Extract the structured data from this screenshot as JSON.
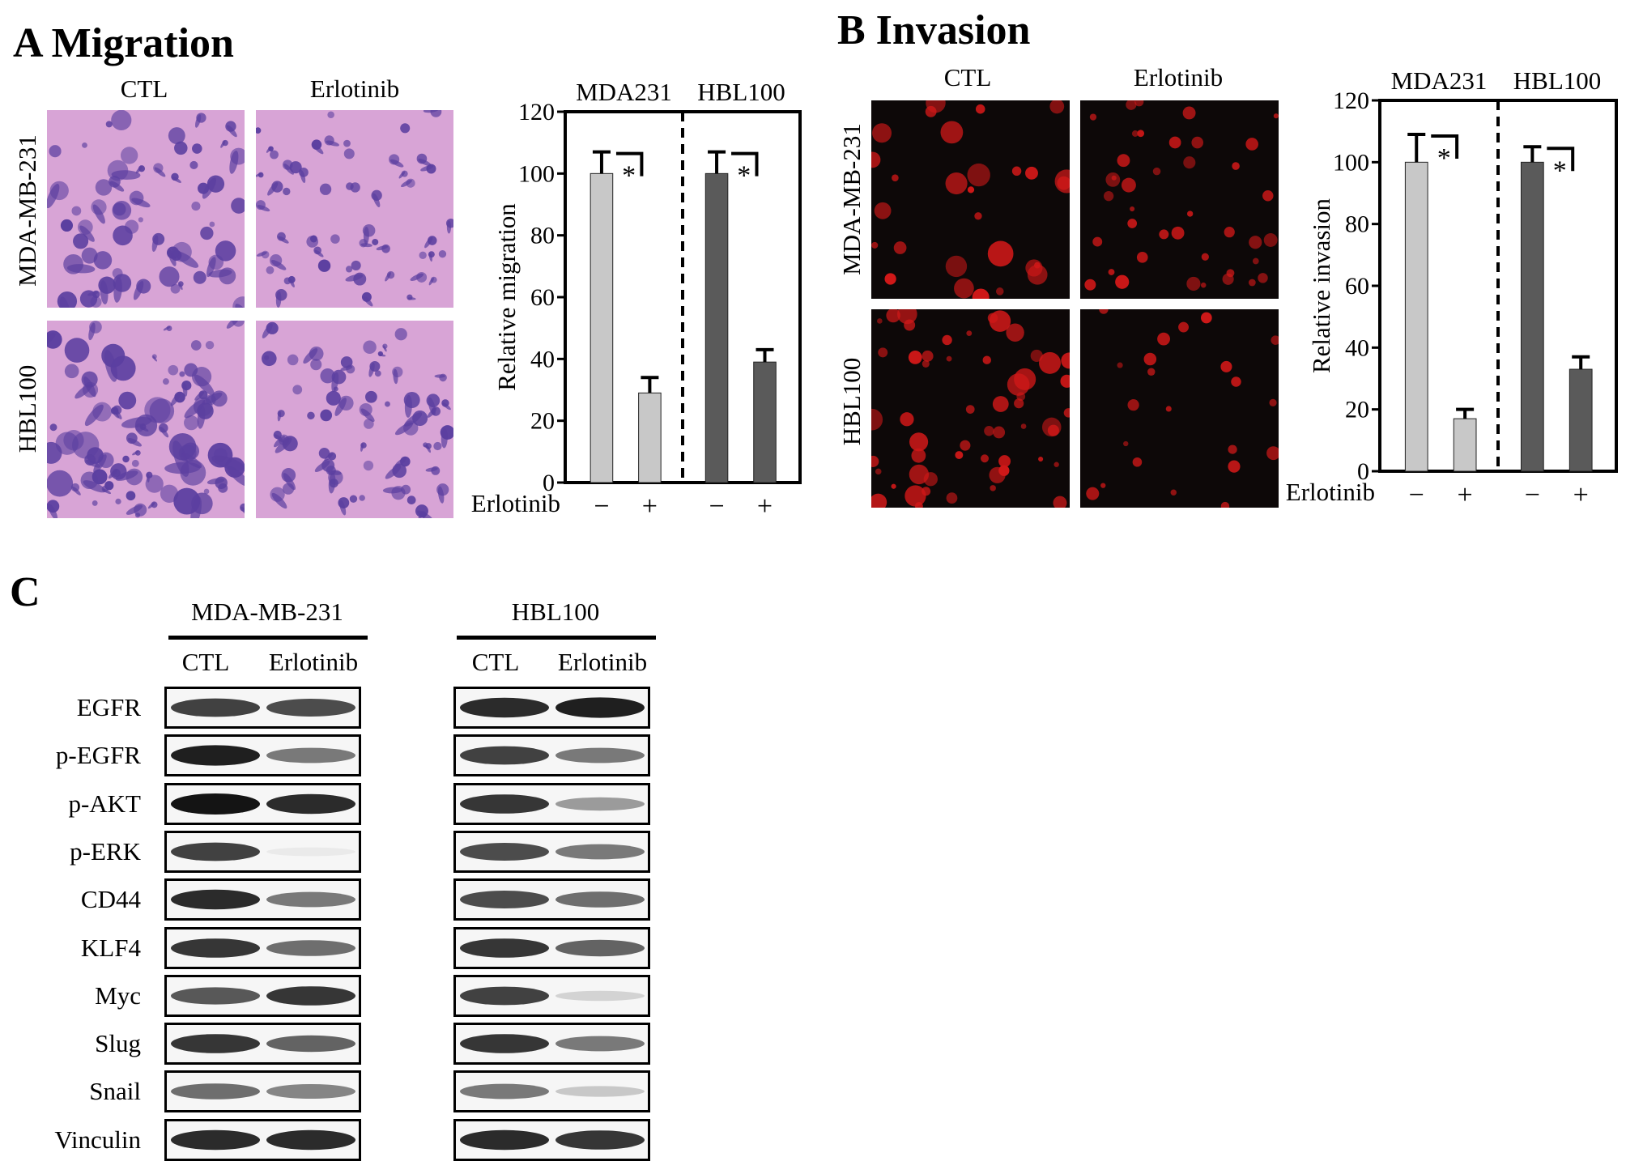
{
  "panelA": {
    "label": "A Migration",
    "col_labels": [
      "CTL",
      "Erlotinib"
    ],
    "row_labels": [
      "MDA-MB-231",
      "HBL100"
    ],
    "stain_colors": {
      "background": "#d8a4d6",
      "cell": "#5b3fa0"
    }
  },
  "panelB": {
    "label": "B Invasion",
    "col_labels": [
      "CTL",
      "Erlotinib"
    ],
    "row_labels": [
      "MDA-MB-231",
      "HBL100"
    ],
    "stain_colors": {
      "background": "#0d0808",
      "cell": "#d01818"
    }
  },
  "panelC": {
    "label": "C",
    "groups": [
      {
        "name": "MDA-MB-231",
        "cols": [
          "CTL",
          "Erlotinib"
        ]
      },
      {
        "name": "HBL100",
        "cols": [
          "CTL",
          "Erlotinib"
        ]
      }
    ],
    "rows": [
      "EGFR",
      "p-EGFR",
      "p-AKT",
      "p-ERK",
      "CD44",
      "KLF4",
      "Myc",
      "Slug",
      "Snail",
      "Vinculin"
    ],
    "band_intensity_mda": [
      [
        0.8,
        0.75
      ],
      [
        0.95,
        0.55
      ],
      [
        1.0,
        0.9
      ],
      [
        0.8,
        0.05
      ],
      [
        0.9,
        0.55
      ],
      [
        0.85,
        0.6
      ],
      [
        0.7,
        0.85
      ],
      [
        0.85,
        0.65
      ],
      [
        0.6,
        0.5
      ],
      [
        0.9,
        0.9
      ]
    ],
    "band_intensity_hbl": [
      [
        0.9,
        0.95
      ],
      [
        0.8,
        0.55
      ],
      [
        0.85,
        0.4
      ],
      [
        0.75,
        0.55
      ],
      [
        0.75,
        0.6
      ],
      [
        0.85,
        0.65
      ],
      [
        0.8,
        0.15
      ],
      [
        0.85,
        0.55
      ],
      [
        0.55,
        0.2
      ],
      [
        0.9,
        0.85
      ]
    ]
  },
  "chart_data": [
    {
      "type": "bar",
      "title": "",
      "group_labels": [
        "MDA231",
        "HBL100"
      ],
      "xlabel": "Erlotinib",
      "x_tick_labels": [
        "−",
        "+",
        "−",
        "+"
      ],
      "ylabel": "Relative migration",
      "ylim": [
        0,
        120
      ],
      "yticks": [
        0,
        20,
        40,
        60,
        80,
        100,
        120
      ],
      "values": [
        100,
        29,
        100,
        39
      ],
      "errors": [
        7,
        5,
        7,
        4
      ],
      "bar_colors": [
        "#c8c8c8",
        "#c8c8c8",
        "#5a5a5a",
        "#5a5a5a"
      ],
      "significance": "*"
    },
    {
      "type": "bar",
      "title": "",
      "group_labels": [
        "MDA231",
        "HBL100"
      ],
      "xlabel": "Erlotinib",
      "x_tick_labels": [
        "−",
        "+",
        "−",
        "+"
      ],
      "ylabel": "Relative invasion",
      "ylim": [
        0,
        120
      ],
      "yticks": [
        0,
        20,
        40,
        60,
        80,
        100,
        120
      ],
      "values": [
        100,
        17,
        100,
        33
      ],
      "errors": [
        9,
        3,
        5,
        4
      ],
      "bar_colors": [
        "#c8c8c8",
        "#c8c8c8",
        "#5a5a5a",
        "#5a5a5a"
      ],
      "significance": "*"
    }
  ]
}
